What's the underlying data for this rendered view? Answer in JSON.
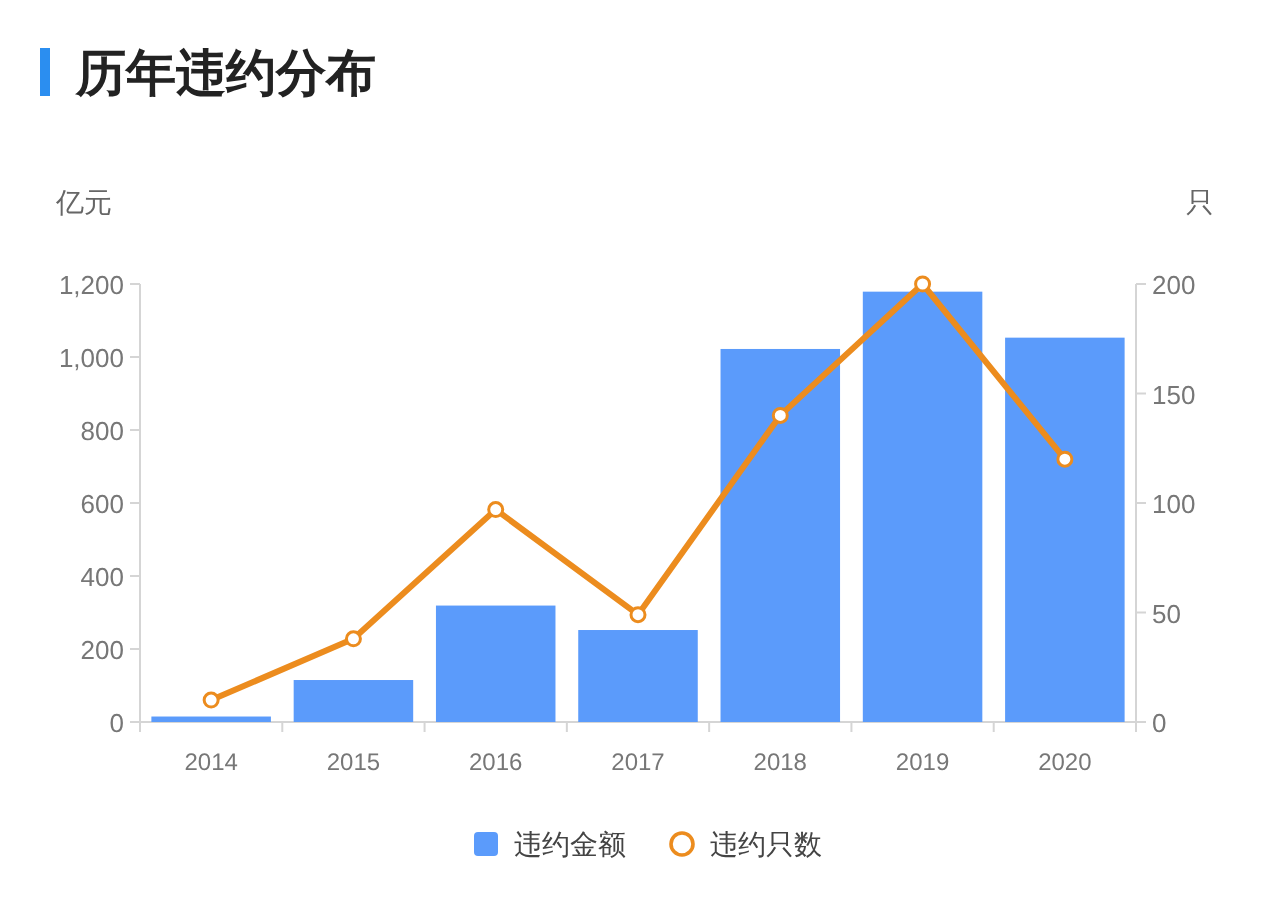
{
  "chart_data": {
    "type": "bar",
    "title": "历年违约分布",
    "ylabel": "亿元",
    "y2label": "只",
    "categories": [
      "2014",
      "2015",
      "2016",
      "2017",
      "2018",
      "2019",
      "2020"
    ],
    "series": [
      {
        "name": "违约金额",
        "color": "#5b9bfb",
        "values": [
          15,
          115,
          319,
          252,
          1022,
          1179,
          1053
        ]
      },
      {
        "name": "违约只数",
        "type": "line",
        "axis": "y2",
        "color": "#ec8c1e",
        "marker": "circle",
        "values": [
          10,
          38,
          97,
          49,
          140,
          200,
          120
        ]
      }
    ],
    "ylim": [
      0,
      1200
    ],
    "yticks": [
      {
        "value": 0,
        "label": "0"
      },
      {
        "value": 200,
        "label": "200"
      },
      {
        "value": 400,
        "label": "400"
      },
      {
        "value": 600,
        "label": "600"
      },
      {
        "value": 800,
        "label": "800"
      },
      {
        "value": 1000,
        "label": "1,000"
      },
      {
        "value": 1200,
        "label": "1,200"
      }
    ],
    "y2lim": [
      0,
      200
    ],
    "y2ticks": [
      0,
      50,
      100,
      150,
      200
    ],
    "grid": false,
    "legend": "bottom"
  }
}
